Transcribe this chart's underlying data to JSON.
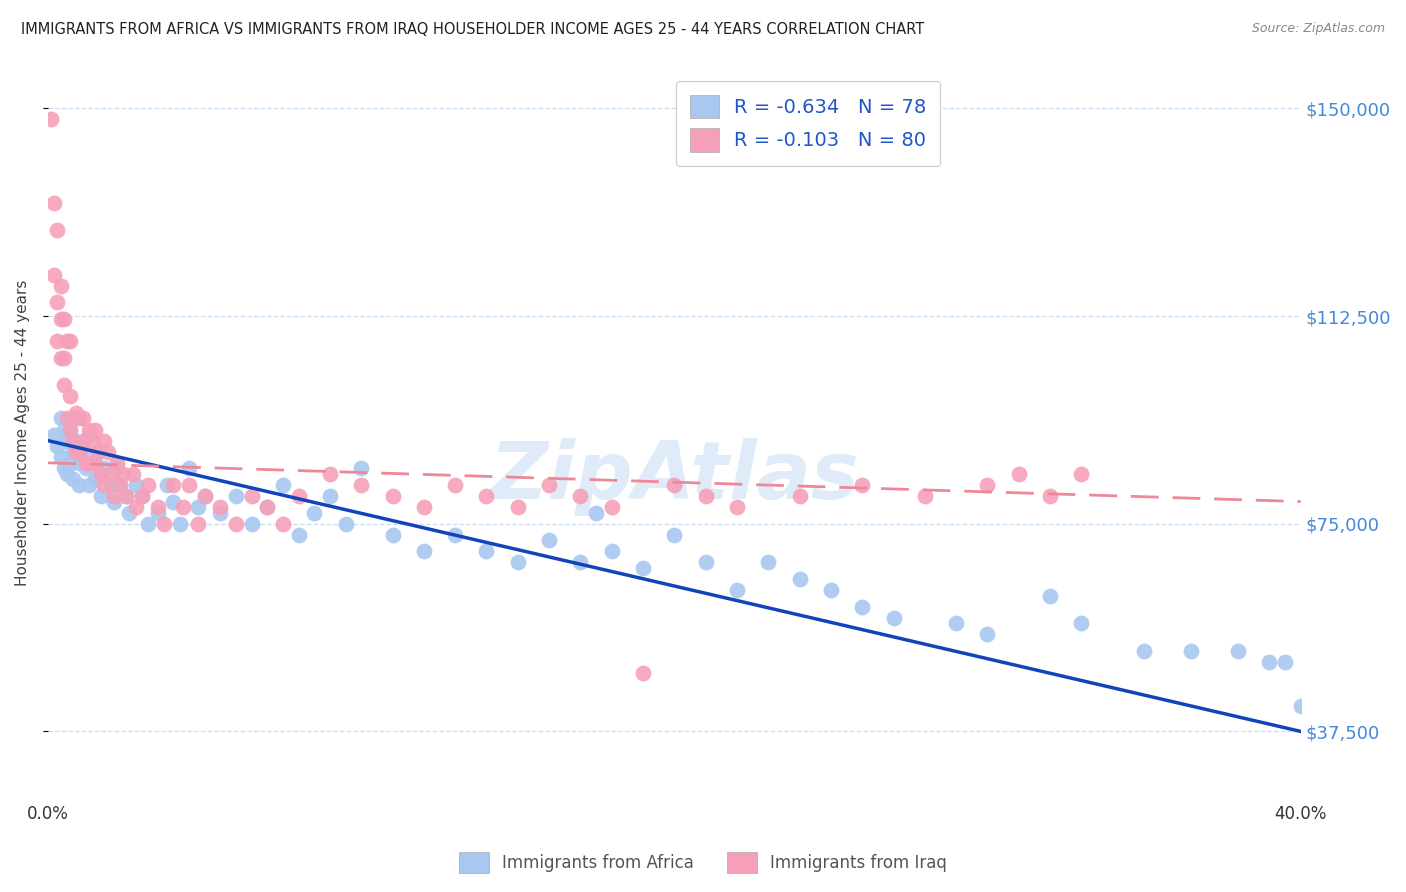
{
  "title": "IMMIGRANTS FROM AFRICA VS IMMIGRANTS FROM IRAQ HOUSEHOLDER INCOME AGES 25 - 44 YEARS CORRELATION CHART",
  "source": "Source: ZipAtlas.com",
  "ylabel": "Householder Income Ages 25 - 44 years",
  "xlim": [
    0.0,
    0.4
  ],
  "ylim": [
    25000,
    158000
  ],
  "africa_color": "#a8c8f0",
  "iraq_color": "#f5a0b8",
  "africa_line_color": "#1144bb",
  "iraq_line_color": "#ee8899",
  "watermark": "ZipAtlas",
  "africa_R": -0.634,
  "africa_N": 78,
  "iraq_R": -0.103,
  "iraq_N": 80,
  "africa_line_x0": 0.0,
  "africa_line_y0": 90000,
  "africa_line_x1": 0.4,
  "africa_line_y1": 37500,
  "iraq_line_x0": 0.0,
  "iraq_line_y0": 86000,
  "iraq_line_x1": 0.4,
  "iraq_line_y1": 79000,
  "africa_x": [
    0.002,
    0.003,
    0.004,
    0.004,
    0.005,
    0.005,
    0.006,
    0.006,
    0.007,
    0.007,
    0.008,
    0.008,
    0.009,
    0.01,
    0.01,
    0.011,
    0.012,
    0.013,
    0.013,
    0.014,
    0.015,
    0.016,
    0.017,
    0.018,
    0.02,
    0.021,
    0.022,
    0.023,
    0.025,
    0.026,
    0.028,
    0.03,
    0.032,
    0.035,
    0.038,
    0.04,
    0.042,
    0.045,
    0.048,
    0.05,
    0.055,
    0.06,
    0.065,
    0.07,
    0.075,
    0.08,
    0.085,
    0.09,
    0.095,
    0.1,
    0.11,
    0.12,
    0.13,
    0.14,
    0.15,
    0.16,
    0.17,
    0.175,
    0.18,
    0.19,
    0.2,
    0.21,
    0.22,
    0.23,
    0.24,
    0.25,
    0.26,
    0.27,
    0.29,
    0.3,
    0.32,
    0.33,
    0.35,
    0.365,
    0.38,
    0.39,
    0.395,
    0.4
  ],
  "africa_y": [
    91000,
    89000,
    94000,
    87000,
    92000,
    85000,
    90000,
    84000,
    92000,
    86000,
    88000,
    83000,
    90000,
    86000,
    82000,
    88000,
    85000,
    82000,
    91000,
    86000,
    83000,
    88000,
    80000,
    85000,
    82000,
    79000,
    85000,
    82000,
    80000,
    77000,
    82000,
    80000,
    75000,
    77000,
    82000,
    79000,
    75000,
    85000,
    78000,
    80000,
    77000,
    80000,
    75000,
    78000,
    82000,
    73000,
    77000,
    80000,
    75000,
    85000,
    73000,
    70000,
    73000,
    70000,
    68000,
    72000,
    68000,
    77000,
    70000,
    67000,
    73000,
    68000,
    63000,
    68000,
    65000,
    63000,
    60000,
    58000,
    57000,
    55000,
    62000,
    57000,
    52000,
    52000,
    52000,
    50000,
    50000,
    42000
  ],
  "iraq_x": [
    0.001,
    0.002,
    0.002,
    0.003,
    0.003,
    0.003,
    0.004,
    0.004,
    0.004,
    0.005,
    0.005,
    0.005,
    0.006,
    0.006,
    0.007,
    0.007,
    0.007,
    0.008,
    0.008,
    0.009,
    0.009,
    0.01,
    0.01,
    0.011,
    0.011,
    0.012,
    0.013,
    0.013,
    0.014,
    0.015,
    0.015,
    0.016,
    0.017,
    0.018,
    0.018,
    0.019,
    0.02,
    0.021,
    0.022,
    0.023,
    0.024,
    0.025,
    0.027,
    0.028,
    0.03,
    0.032,
    0.035,
    0.037,
    0.04,
    0.043,
    0.045,
    0.048,
    0.05,
    0.055,
    0.06,
    0.065,
    0.07,
    0.075,
    0.08,
    0.09,
    0.1,
    0.11,
    0.12,
    0.13,
    0.14,
    0.15,
    0.16,
    0.17,
    0.18,
    0.19,
    0.2,
    0.21,
    0.22,
    0.24,
    0.26,
    0.28,
    0.3,
    0.31,
    0.32,
    0.33
  ],
  "iraq_y": [
    148000,
    133000,
    120000,
    115000,
    128000,
    108000,
    118000,
    105000,
    112000,
    105000,
    100000,
    112000,
    94000,
    108000,
    98000,
    92000,
    108000,
    94000,
    90000,
    95000,
    88000,
    94000,
    88000,
    90000,
    94000,
    86000,
    92000,
    86000,
    90000,
    86000,
    92000,
    88000,
    84000,
    90000,
    82000,
    88000,
    84000,
    80000,
    86000,
    82000,
    84000,
    80000,
    84000,
    78000,
    80000,
    82000,
    78000,
    75000,
    82000,
    78000,
    82000,
    75000,
    80000,
    78000,
    75000,
    80000,
    78000,
    75000,
    80000,
    84000,
    82000,
    80000,
    78000,
    82000,
    80000,
    78000,
    82000,
    80000,
    78000,
    48000,
    82000,
    80000,
    78000,
    80000,
    82000,
    80000,
    82000,
    84000,
    80000,
    84000
  ]
}
